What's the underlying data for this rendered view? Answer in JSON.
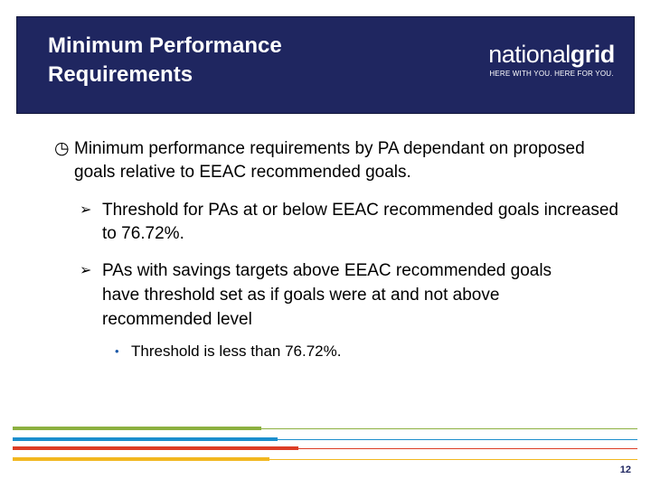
{
  "header": {
    "title": "Minimum Performance Requirements",
    "brand": {
      "name_light": "national",
      "name_bold": "grid",
      "tagline": "HERE WITH YOU. HERE FOR YOU."
    }
  },
  "content": {
    "main_bullet": {
      "icon": "clock-icon",
      "bullet_glyph": "◷",
      "text": "Minimum performance requirements by PA dependant on proposed goals relative to EEAC recommended goals."
    },
    "sub_bullets": [
      {
        "bullet_glyph": "➢",
        "text": "Threshold for PAs at or below EEAC recommended goals increased to 76.72%."
      },
      {
        "bullet_glyph": "➢",
        "text": "PAs with savings targets above EEAC recommended goals have threshold set as if goals were at and not above recommended level"
      }
    ],
    "sub_sub_bullet": {
      "bullet_glyph": "•",
      "text": "Threshold is less than 76.72%."
    }
  },
  "footer": {
    "page_number": "12",
    "stripe_colors": [
      "#8cb040",
      "#1b8fcd",
      "#dc3d25",
      "#f2b71f"
    ]
  },
  "colors": {
    "header_background": "#1f2660",
    "accent_blue": "#1e5aa8"
  }
}
